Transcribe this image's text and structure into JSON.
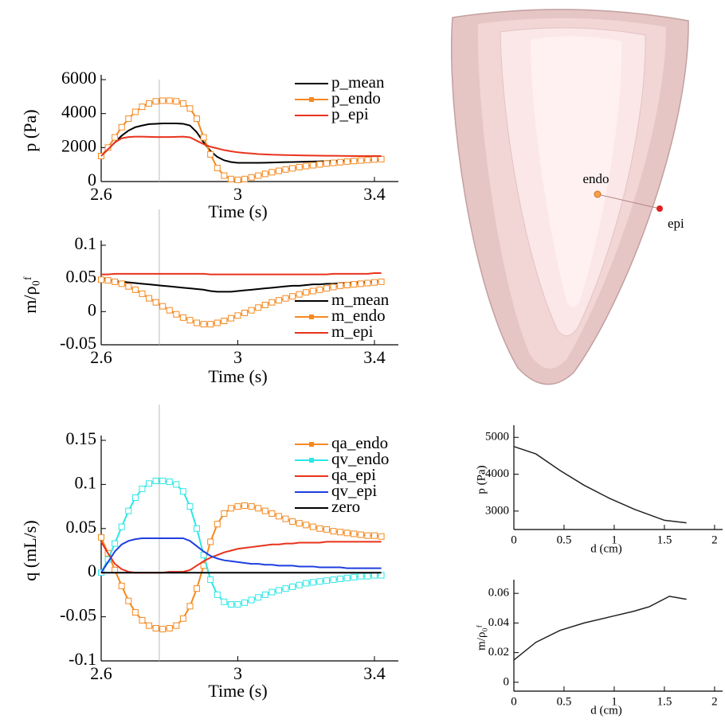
{
  "chart_data": [
    {
      "type": "line",
      "xlabel": "Time (s)",
      "ylabel": "p (Pa)",
      "legend": "upper right",
      "vline": 2.77,
      "x": [
        2.6,
        2.62,
        2.64,
        2.66,
        2.68,
        2.7,
        2.72,
        2.74,
        2.76,
        2.78,
        2.8,
        2.82,
        2.84,
        2.86,
        2.88,
        2.9,
        2.92,
        2.94,
        2.96,
        2.98,
        3.0,
        3.02,
        3.04,
        3.06,
        3.08,
        3.1,
        3.12,
        3.14,
        3.16,
        3.18,
        3.2,
        3.22,
        3.24,
        3.26,
        3.28,
        3.3,
        3.32,
        3.34,
        3.36,
        3.38,
        3.4,
        3.42
      ],
      "xlim": [
        2.6,
        3.47
      ],
      "xticks": [
        2.6,
        3,
        3.4
      ],
      "ylim": [
        0,
        6000
      ],
      "yticks": [
        0,
        2000,
        4000,
        6000
      ],
      "series": [
        {
          "name": "p_mean",
          "color": "#000000",
          "values": [
            1500,
            1900,
            2300,
            2700,
            3000,
            3200,
            3300,
            3380,
            3400,
            3420,
            3420,
            3420,
            3400,
            3300,
            2900,
            2300,
            1800,
            1450,
            1250,
            1150,
            1100,
            1100,
            1100,
            1100,
            1110,
            1120,
            1130,
            1140,
            1150,
            1160,
            1170,
            1180,
            1190,
            1200,
            1210,
            1220,
            1230,
            1240,
            1250,
            1260,
            1270,
            1280
          ]
        },
        {
          "name": "p_endo",
          "color": "#f5891f",
          "marker": "square",
          "values": [
            1500,
            2000,
            2600,
            3200,
            3700,
            4100,
            4400,
            4600,
            4720,
            4760,
            4760,
            4720,
            4600,
            4300,
            3700,
            2600,
            1600,
            800,
            350,
            150,
            100,
            150,
            250,
            350,
            450,
            550,
            630,
            710,
            780,
            850,
            910,
            960,
            1010,
            1060,
            1100,
            1140,
            1180,
            1210,
            1240,
            1270,
            1300,
            1320
          ]
        },
        {
          "name": "p_epi",
          "color": "#e8331c",
          "values": [
            1500,
            1900,
            2300,
            2550,
            2620,
            2640,
            2640,
            2630,
            2620,
            2620,
            2620,
            2630,
            2640,
            2600,
            2400,
            2200,
            2050,
            1950,
            1850,
            1780,
            1720,
            1680,
            1650,
            1620,
            1600,
            1580,
            1570,
            1560,
            1550,
            1540,
            1535,
            1530,
            1525,
            1520,
            1515,
            1510,
            1505,
            1500,
            1500,
            1500,
            1500,
            1500
          ]
        }
      ]
    },
    {
      "type": "line",
      "xlabel": "Time (s)",
      "ylabel": "m/ρ₀ᶠ",
      "legend": "lower right",
      "vline": 2.77,
      "x": [
        2.6,
        2.62,
        2.64,
        2.66,
        2.68,
        2.7,
        2.72,
        2.74,
        2.76,
        2.78,
        2.8,
        2.82,
        2.84,
        2.86,
        2.88,
        2.9,
        2.92,
        2.94,
        2.96,
        2.98,
        3.0,
        3.02,
        3.04,
        3.06,
        3.08,
        3.1,
        3.12,
        3.14,
        3.16,
        3.18,
        3.2,
        3.22,
        3.24,
        3.26,
        3.28,
        3.3,
        3.32,
        3.34,
        3.36,
        3.38,
        3.4,
        3.42
      ],
      "xlim": [
        2.6,
        3.47
      ],
      "xticks": [
        2.6,
        3,
        3.4
      ],
      "ylim": [
        -0.05,
        0.1
      ],
      "yticks": [
        -0.05,
        0,
        0.05,
        0.1
      ],
      "series": [
        {
          "name": "m_mean",
          "color": "#000000",
          "values": [
            0.048,
            0.047,
            0.046,
            0.045,
            0.044,
            0.043,
            0.042,
            0.041,
            0.04,
            0.039,
            0.038,
            0.037,
            0.036,
            0.035,
            0.034,
            0.033,
            0.031,
            0.03,
            0.03,
            0.03,
            0.031,
            0.032,
            0.033,
            0.034,
            0.035,
            0.036,
            0.037,
            0.038,
            0.039,
            0.039,
            0.04,
            0.041,
            0.041,
            0.042,
            0.042,
            0.043,
            0.043,
            0.044,
            0.044,
            0.045,
            0.045,
            0.046
          ]
        },
        {
          "name": "m_endo",
          "color": "#f5891f",
          "marker": "square",
          "values": [
            0.048,
            0.047,
            0.045,
            0.042,
            0.038,
            0.033,
            0.027,
            0.02,
            0.014,
            0.008,
            0.002,
            -0.004,
            -0.009,
            -0.013,
            -0.017,
            -0.019,
            -0.019,
            -0.017,
            -0.014,
            -0.01,
            -0.006,
            -0.002,
            0.002,
            0.006,
            0.01,
            0.014,
            0.017,
            0.02,
            0.023,
            0.026,
            0.029,
            0.031,
            0.033,
            0.035,
            0.037,
            0.039,
            0.04,
            0.041,
            0.042,
            0.043,
            0.044,
            0.045
          ]
        },
        {
          "name": "m_epi",
          "color": "#e8331c",
          "values": [
            0.056,
            0.056,
            0.057,
            0.057,
            0.057,
            0.057,
            0.057,
            0.057,
            0.057,
            0.057,
            0.057,
            0.057,
            0.057,
            0.057,
            0.057,
            0.057,
            0.056,
            0.056,
            0.056,
            0.056,
            0.056,
            0.056,
            0.056,
            0.056,
            0.056,
            0.056,
            0.056,
            0.056,
            0.056,
            0.056,
            0.056,
            0.056,
            0.056,
            0.056,
            0.057,
            0.057,
            0.057,
            0.057,
            0.057,
            0.057,
            0.058,
            0.058
          ]
        }
      ]
    },
    {
      "type": "line",
      "xlabel": "Time (s)",
      "ylabel": "q (mL/s)",
      "legend": "upper right",
      "vline": 2.77,
      "x": [
        2.6,
        2.62,
        2.64,
        2.66,
        2.68,
        2.7,
        2.72,
        2.74,
        2.76,
        2.78,
        2.8,
        2.82,
        2.84,
        2.86,
        2.88,
        2.9,
        2.92,
        2.94,
        2.96,
        2.98,
        3.0,
        3.02,
        3.04,
        3.06,
        3.08,
        3.1,
        3.12,
        3.14,
        3.16,
        3.18,
        3.2,
        3.22,
        3.24,
        3.26,
        3.28,
        3.3,
        3.32,
        3.34,
        3.36,
        3.38,
        3.4,
        3.42
      ],
      "xlim": [
        2.6,
        3.47
      ],
      "xticks": [
        2.6,
        3,
        3.4
      ],
      "ylim": [
        -0.1,
        0.15
      ],
      "yticks": [
        -0.1,
        -0.05,
        0,
        0.05,
        0.1,
        0.15
      ],
      "series": [
        {
          "name": "qa_endo",
          "color": "#f5891f",
          "marker": "square",
          "values": [
            0.04,
            0.022,
            0.003,
            -0.015,
            -0.032,
            -0.045,
            -0.054,
            -0.06,
            -0.063,
            -0.064,
            -0.063,
            -0.06,
            -0.052,
            -0.038,
            -0.018,
            0.008,
            0.035,
            0.055,
            0.067,
            0.073,
            0.075,
            0.076,
            0.075,
            0.073,
            0.07,
            0.067,
            0.064,
            0.061,
            0.058,
            0.056,
            0.054,
            0.052,
            0.05,
            0.049,
            0.047,
            0.046,
            0.045,
            0.044,
            0.043,
            0.042,
            0.042,
            0.041
          ]
        },
        {
          "name": "qv_endo",
          "color": "#2ee6e6",
          "marker": "square",
          "values": [
            0.0,
            0.015,
            0.033,
            0.052,
            0.07,
            0.085,
            0.095,
            0.101,
            0.104,
            0.104,
            0.103,
            0.1,
            0.092,
            0.075,
            0.05,
            0.02,
            -0.008,
            -0.025,
            -0.033,
            -0.036,
            -0.036,
            -0.034,
            -0.031,
            -0.028,
            -0.025,
            -0.022,
            -0.02,
            -0.018,
            -0.016,
            -0.014,
            -0.012,
            -0.011,
            -0.01,
            -0.009,
            -0.008,
            -0.007,
            -0.006,
            -0.005,
            -0.004,
            -0.004,
            -0.003,
            -0.003
          ]
        },
        {
          "name": "qa_epi",
          "color": "#e8331c",
          "values": [
            0.035,
            0.022,
            0.01,
            0.004,
            0.001,
            0.0,
            0.0,
            0.0,
            0.0,
            0.0,
            0.001,
            0.001,
            0.001,
            0.003,
            0.008,
            0.013,
            0.017,
            0.02,
            0.023,
            0.025,
            0.027,
            0.028,
            0.029,
            0.03,
            0.031,
            0.032,
            0.032,
            0.033,
            0.033,
            0.034,
            0.034,
            0.034,
            0.034,
            0.035,
            0.035,
            0.035,
            0.035,
            0.035,
            0.035,
            0.035,
            0.035,
            0.035
          ]
        },
        {
          "name": "qv_epi",
          "color": "#1f3fe0",
          "values": [
            0.0,
            0.012,
            0.024,
            0.032,
            0.036,
            0.038,
            0.039,
            0.039,
            0.039,
            0.039,
            0.039,
            0.039,
            0.039,
            0.036,
            0.03,
            0.024,
            0.019,
            0.016,
            0.014,
            0.013,
            0.012,
            0.011,
            0.01,
            0.01,
            0.009,
            0.009,
            0.008,
            0.008,
            0.008,
            0.007,
            0.007,
            0.007,
            0.006,
            0.006,
            0.006,
            0.006,
            0.005,
            0.005,
            0.005,
            0.005,
            0.005,
            0.005
          ]
        },
        {
          "name": "zero",
          "color": "#000000",
          "values": [
            0,
            0,
            0,
            0,
            0,
            0,
            0,
            0,
            0,
            0,
            0,
            0,
            0,
            0,
            0,
            0,
            0,
            0,
            0,
            0,
            0,
            0,
            0,
            0,
            0,
            0,
            0,
            0,
            0,
            0,
            0,
            0,
            0,
            0,
            0,
            0,
            0,
            0,
            0,
            0,
            0,
            0
          ]
        }
      ]
    },
    {
      "type": "line",
      "xlabel": "d (cm)",
      "ylabel": "p (Pa)",
      "x": [
        0,
        0.22,
        0.46,
        0.7,
        0.95,
        1.2,
        1.5,
        1.72
      ],
      "xlim": [
        0,
        2.08
      ],
      "xticks": [
        0,
        0.5,
        1,
        1.5,
        2
      ],
      "ylim": [
        2500,
        5200
      ],
      "yticks": [
        3000,
        4000,
        5000
      ],
      "series": [
        {
          "color": "#222222",
          "values": [
            4750,
            4550,
            4100,
            3700,
            3350,
            3050,
            2750,
            2680
          ]
        }
      ]
    },
    {
      "type": "line",
      "xlabel": "d (cm)",
      "ylabel": "m/ρ₀ᶠ",
      "x": [
        0,
        0.22,
        0.46,
        0.7,
        0.95,
        1.2,
        1.35,
        1.55,
        1.72
      ],
      "xlim": [
        0,
        2.08
      ],
      "xticks": [
        0,
        0.5,
        1,
        1.5,
        2
      ],
      "ylim": [
        -0.006,
        0.066
      ],
      "yticks": [
        0,
        0.02,
        0.04,
        0.06
      ],
      "series": [
        {
          "color": "#222222",
          "values": [
            0.015,
            0.027,
            0.035,
            0.04,
            0.044,
            0.048,
            0.051,
            0.058,
            0.056
          ]
        }
      ]
    }
  ],
  "image": {
    "labels": [
      "endo",
      "epi"
    ]
  }
}
